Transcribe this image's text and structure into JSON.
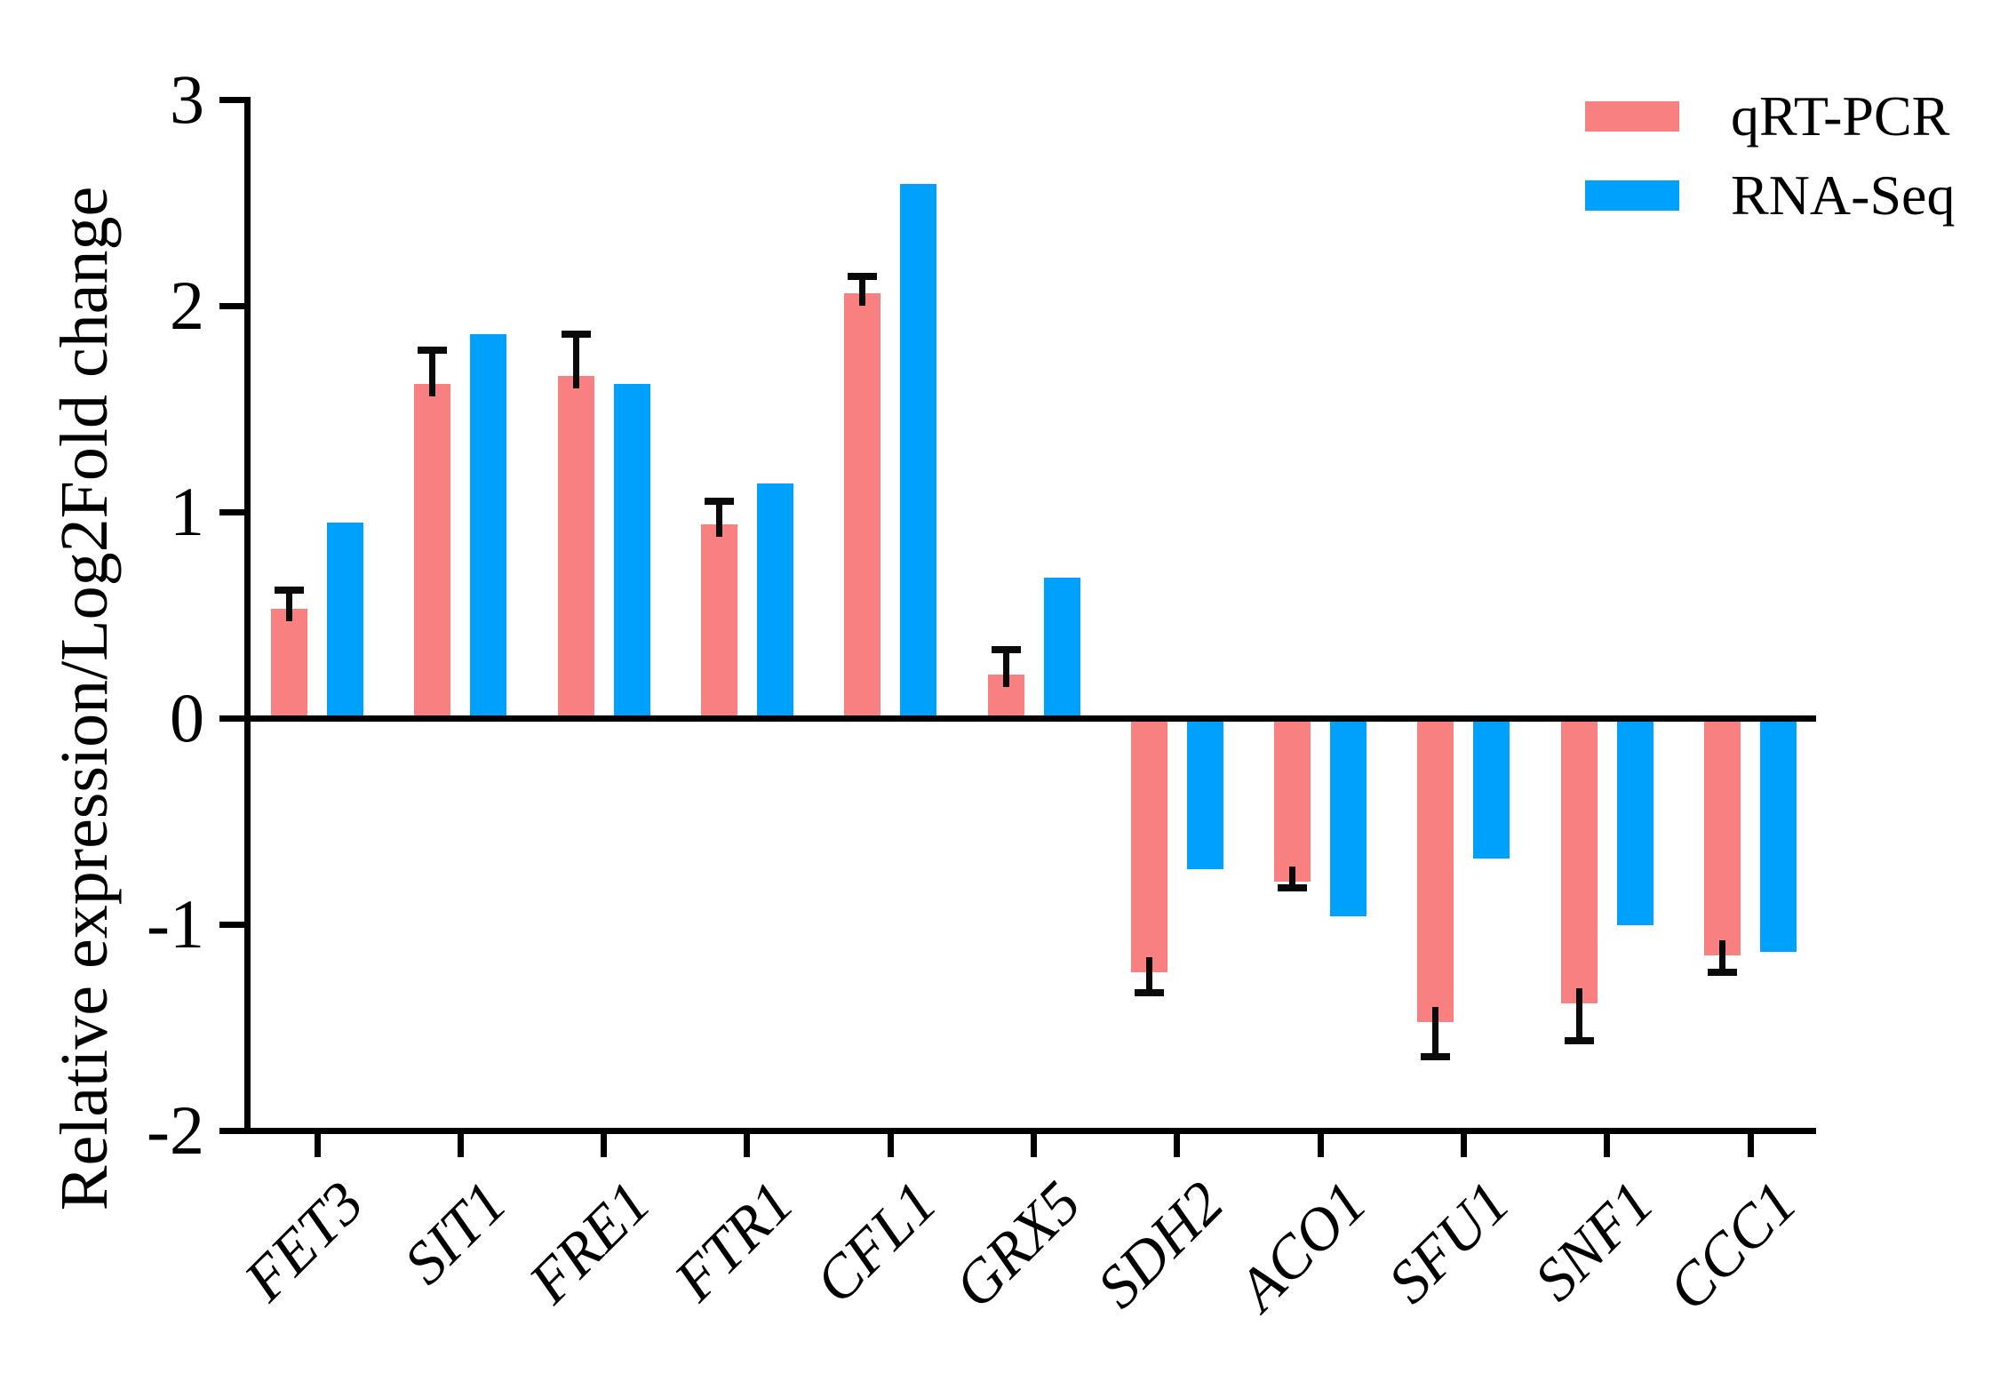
{
  "chart_data": {
    "type": "bar",
    "title": "",
    "xlabel": "",
    "ylabel": "Relative expression/Log2Fold change",
    "ylim": [
      -2,
      3
    ],
    "yticks": [
      3,
      2,
      1,
      0,
      -1,
      -2
    ],
    "grid": false,
    "legend_position": "top-right",
    "categories": [
      "FET3",
      "SIT1",
      "FRE1",
      "FTR1",
      "CFL1",
      "GRX5",
      "SDH2",
      "ACO1",
      "SFU1",
      "SNF1",
      "CCC1"
    ],
    "series": [
      {
        "name": "qRT-PCR",
        "color": "#F98080",
        "values": [
          0.53,
          1.62,
          1.66,
          0.94,
          2.06,
          0.21,
          -1.22,
          -0.78,
          -1.46,
          -1.37,
          -1.14
        ],
        "errors": [
          0.11,
          0.18,
          0.22,
          0.13,
          0.1,
          0.14,
          0.13,
          0.06,
          0.2,
          0.21,
          0.11
        ]
      },
      {
        "name": "RNA-Seq",
        "color": "#00A0FD",
        "values": [
          0.95,
          1.86,
          1.62,
          1.14,
          2.59,
          0.68,
          -0.72,
          -0.95,
          -0.67,
          -0.99,
          -1.12
        ],
        "errors": null
      }
    ]
  },
  "colors": {
    "axis": "#000000",
    "background": "#FFFFFF"
  }
}
